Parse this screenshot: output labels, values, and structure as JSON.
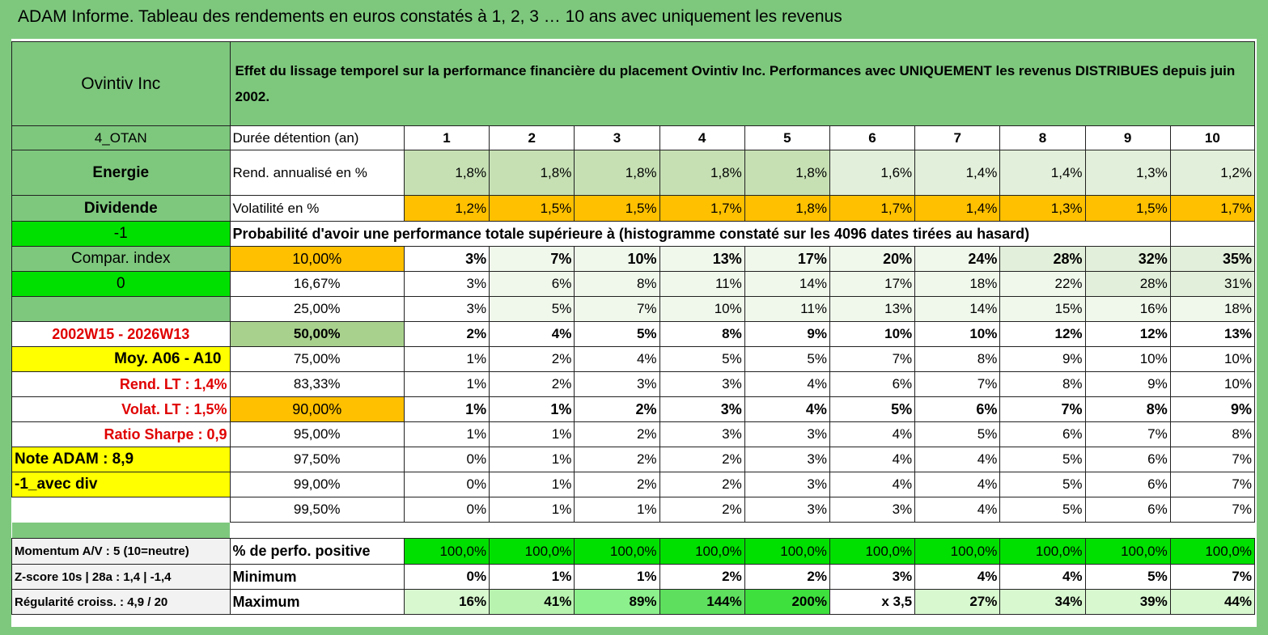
{
  "title": "ADAM Informe. Tableau des rendements en euros constatés à 1, 2, 3 … 10 ans avec uniquement les revenus",
  "header": {
    "name": "Ovintiv Inc",
    "description": "Effet du lissage temporel sur la performance financière du placement Ovintiv Inc. Performances avec UNIQUEMENT les revenus DISTRIBUES depuis juin 2002."
  },
  "side": {
    "code": "4_OTAN",
    "sector": "Energie",
    "type": "Dividende",
    "minus1": "-1",
    "compar": "Compar. index",
    "zero": "0",
    "period": "2002W15 - 2026W13",
    "moy": "Moy. A06 - A10",
    "rend_lt": "Rend. LT :   1,4%",
    "volat_lt": "Volat. LT :   1,5%",
    "sharpe": "Ratio Sharpe :    0,9",
    "note": "Note ADAM : 8,9",
    "avec_div": "-1_avec div",
    "momentum": "Momentum A/V : 5 (10=neutre)",
    "zscore": "Z-score 10s | 28a : 1,4 | -1,4",
    "regularite": "Régularité croiss. : 4,9 / 20"
  },
  "rows": {
    "duree_label": "Durée détention (an)",
    "years": [
      "1",
      "2",
      "3",
      "4",
      "5",
      "6",
      "7",
      "8",
      "9",
      "10"
    ],
    "rend_label": "Rend. annualisé en %",
    "rend": [
      "1,8%",
      "1,8%",
      "1,8%",
      "1,8%",
      "1,8%",
      "1,6%",
      "1,4%",
      "1,4%",
      "1,3%",
      "1,2%"
    ],
    "vol_label": "Volatilité en %",
    "vol": [
      "1,2%",
      "1,5%",
      "1,5%",
      "1,7%",
      "1,8%",
      "1,7%",
      "1,4%",
      "1,3%",
      "1,5%",
      "1,7%"
    ],
    "proba_label": "Probabilité d'avoir une performance totale supérieure à (histogramme constaté sur les 4096 dates tirées au hasard)",
    "percentiles": [
      {
        "p": "10,00%",
        "v": [
          "3%",
          "7%",
          "10%",
          "13%",
          "17%",
          "20%",
          "24%",
          "28%",
          "32%",
          "35%"
        ]
      },
      {
        "p": "16,67%",
        "v": [
          "3%",
          "6%",
          "8%",
          "11%",
          "14%",
          "17%",
          "18%",
          "22%",
          "28%",
          "31%"
        ]
      },
      {
        "p": "25,00%",
        "v": [
          "3%",
          "5%",
          "7%",
          "10%",
          "11%",
          "13%",
          "14%",
          "15%",
          "16%",
          "18%"
        ]
      },
      {
        "p": "50,00%",
        "v": [
          "2%",
          "4%",
          "5%",
          "8%",
          "9%",
          "10%",
          "10%",
          "12%",
          "12%",
          "13%"
        ]
      },
      {
        "p": "75,00%",
        "v": [
          "1%",
          "2%",
          "4%",
          "5%",
          "5%",
          "7%",
          "8%",
          "9%",
          "10%",
          "10%"
        ]
      },
      {
        "p": "83,33%",
        "v": [
          "1%",
          "2%",
          "3%",
          "3%",
          "4%",
          "6%",
          "7%",
          "8%",
          "9%",
          "10%"
        ]
      },
      {
        "p": "90,00%",
        "v": [
          "1%",
          "1%",
          "2%",
          "3%",
          "4%",
          "5%",
          "6%",
          "7%",
          "8%",
          "9%"
        ]
      },
      {
        "p": "95,00%",
        "v": [
          "1%",
          "1%",
          "2%",
          "3%",
          "3%",
          "4%",
          "5%",
          "6%",
          "7%",
          "8%"
        ]
      },
      {
        "p": "97,50%",
        "v": [
          "0%",
          "1%",
          "2%",
          "2%",
          "3%",
          "4%",
          "4%",
          "5%",
          "6%",
          "7%"
        ]
      },
      {
        "p": "99,00%",
        "v": [
          "0%",
          "1%",
          "2%",
          "2%",
          "3%",
          "4%",
          "4%",
          "5%",
          "6%",
          "7%"
        ]
      },
      {
        "p": "99,50%",
        "v": [
          "0%",
          "1%",
          "1%",
          "2%",
          "3%",
          "3%",
          "4%",
          "5%",
          "6%",
          "7%"
        ]
      }
    ],
    "pos_label": "% de perfo. positive",
    "pos": [
      "100,0%",
      "100,0%",
      "100,0%",
      "100,0%",
      "100,0%",
      "100,0%",
      "100,0%",
      "100,0%",
      "100,0%",
      "100,0%"
    ],
    "min_label": "Minimum",
    "min": [
      "0%",
      "1%",
      "1%",
      "2%",
      "2%",
      "3%",
      "4%",
      "4%",
      "5%",
      "7%"
    ],
    "max_label": "Maximum",
    "max": [
      "16%",
      "41%",
      "89%",
      "144%",
      "200%",
      "x 3,5",
      "27%",
      "34%",
      "39%",
      "44%"
    ]
  },
  "colors": {
    "header_green": "#7ec87e",
    "orange": "#ffc000",
    "bright_green": "#00e000",
    "yellow": "#ffff00",
    "red_text": "#e00000"
  }
}
